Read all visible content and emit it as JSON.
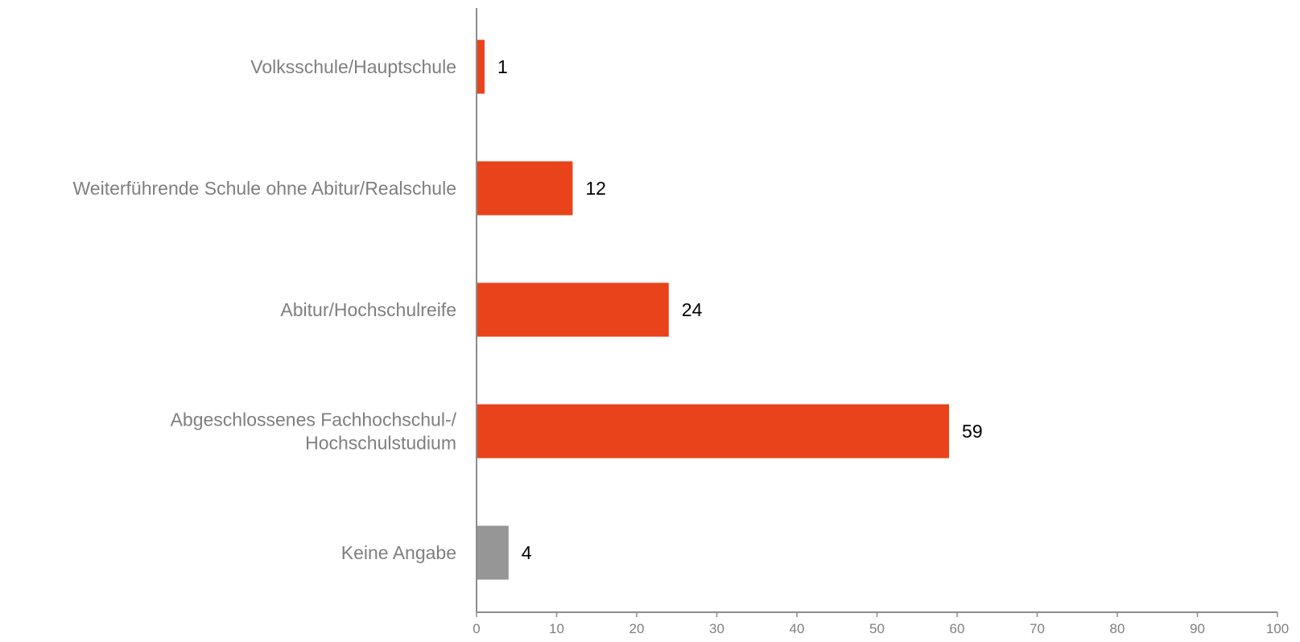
{
  "chart_data": {
    "type": "bar",
    "orientation": "horizontal",
    "title": "",
    "xlabel": "",
    "ylabel": "",
    "categories": [
      [
        "Volksschule/Hauptschule"
      ],
      [
        "Weiterführende Schule ohne Abitur/Realschule"
      ],
      [
        "Abitur/Hochschulreife"
      ],
      [
        "Abgeschlossenes Fachhochschul-/",
        "Hochschulstudium"
      ],
      [
        "Keine Angabe"
      ]
    ],
    "values": [
      1,
      12,
      24,
      59,
      4
    ],
    "value_labels": [
      "1",
      "12",
      "24",
      "59",
      "4"
    ],
    "bar_colors": [
      "#e8431a",
      "#e8431a",
      "#e8431a",
      "#e8431a",
      "#969696"
    ],
    "xlim": [
      0,
      100
    ],
    "xticks": [
      "0",
      "10",
      "20",
      "30",
      "40",
      "50",
      "60",
      "70",
      "80",
      "90",
      "100"
    ],
    "grid": false,
    "legend": "none"
  }
}
